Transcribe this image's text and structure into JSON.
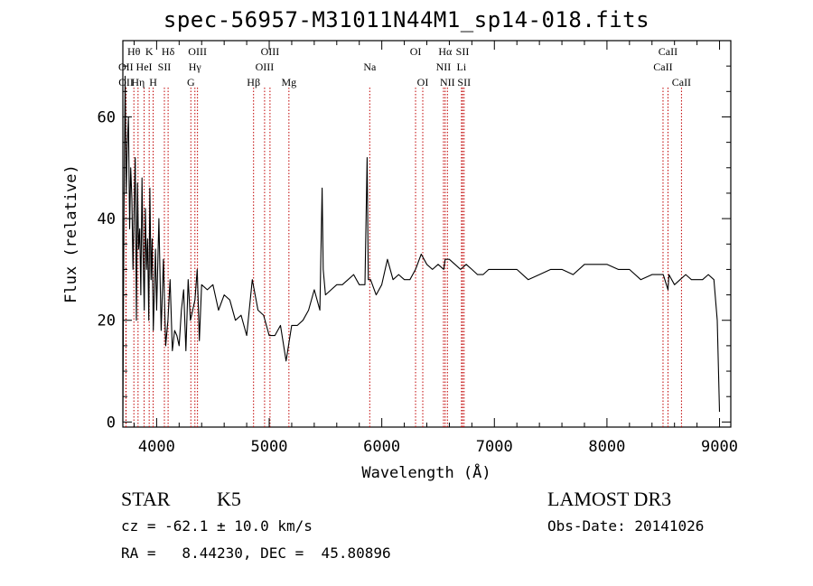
{
  "title": "spec-56957-M31011N44M1_sp14-018.fits",
  "footer": {
    "class_label": "STAR",
    "subclass": "K5",
    "survey": "LAMOST DR3",
    "cz": "cz = -62.1 ± 10.0 km/s",
    "obs_date": "Obs-Date: 20141026",
    "coords": "RA =   8.44230, DEC =  45.80896"
  },
  "colors": {
    "spectrum": "#000000",
    "line_marker": "#c00000",
    "axis": "#000000"
  },
  "chart_data": {
    "type": "line",
    "xlabel": "Wavelength (Å)",
    "ylabel": "Flux (relative)",
    "xlim": [
      3700,
      9100
    ],
    "ylim": [
      -1,
      75
    ],
    "xticks": [
      4000,
      5000,
      6000,
      7000,
      8000,
      9000
    ],
    "yticks": [
      0,
      20,
      40,
      60
    ],
    "grid": false,
    "series": [
      {
        "x": [
          3700,
          3710,
          3720,
          3730,
          3740,
          3750,
          3760,
          3770,
          3780,
          3790,
          3800,
          3810,
          3820,
          3830,
          3840,
          3850,
          3860,
          3870,
          3880,
          3890,
          3900,
          3910,
          3920,
          3930,
          3940,
          3950,
          3960,
          3970,
          3980,
          3990,
          4000,
          4020,
          4040,
          4060,
          4080,
          4100,
          4120,
          4140,
          4160,
          4180,
          4200,
          4220,
          4240,
          4260,
          4280,
          4300,
          4320,
          4340,
          4360,
          4380,
          4400,
          4450,
          4500,
          4550,
          4600,
          4650,
          4700,
          4750,
          4800,
          4850,
          4900,
          4950,
          5000,
          5050,
          5100,
          5150,
          5200,
          5250,
          5300,
          5350,
          5400,
          5450,
          5470,
          5480,
          5500,
          5550,
          5600,
          5650,
          5700,
          5750,
          5800,
          5850,
          5870,
          5880,
          5890,
          5900,
          5950,
          6000,
          6050,
          6100,
          6150,
          6200,
          6250,
          6300,
          6350,
          6400,
          6450,
          6500,
          6550,
          6563,
          6600,
          6650,
          6700,
          6750,
          6800,
          6850,
          6900,
          6950,
          7000,
          7100,
          7200,
          7300,
          7400,
          7500,
          7600,
          7700,
          7800,
          7900,
          8000,
          8100,
          8200,
          8300,
          8400,
          8450,
          8500,
          8542,
          8550,
          8600,
          8650,
          8700,
          8750,
          8800,
          8850,
          8900,
          8950,
          8980,
          9000
        ],
        "y": [
          0,
          40,
          68,
          45,
          55,
          60,
          38,
          50,
          44,
          30,
          42,
          52,
          20,
          47,
          34,
          38,
          25,
          48,
          33,
          22,
          42,
          30,
          36,
          20,
          46,
          28,
          36,
          18,
          26,
          34,
          22,
          40,
          18,
          32,
          15,
          20,
          28,
          14,
          18,
          17,
          15,
          22,
          26,
          14,
          28,
          20,
          22,
          24,
          30,
          16,
          27,
          26,
          27,
          22,
          25,
          24,
          20,
          21,
          17,
          28,
          22,
          21,
          17,
          17,
          19,
          12,
          19,
          19,
          20,
          22,
          26,
          22,
          46,
          30,
          25,
          26,
          27,
          27,
          28,
          29,
          27,
          27,
          52,
          28,
          28,
          28,
          25,
          27,
          32,
          28,
          29,
          28,
          28,
          30,
          33,
          31,
          30,
          31,
          30,
          32,
          32,
          31,
          30,
          31,
          30,
          29,
          29,
          30,
          30,
          30,
          30,
          28,
          29,
          30,
          30,
          29,
          31,
          31,
          31,
          30,
          30,
          28,
          29,
          29,
          29,
          26,
          29,
          27,
          28,
          29,
          28,
          28,
          28,
          29,
          28,
          20,
          2
        ]
      }
    ],
    "annotations": [
      {
        "label": "Hθ",
        "x": 3798,
        "row": 1
      },
      {
        "label": "OII",
        "x": 3727,
        "row": 2
      },
      {
        "label": "OII",
        "x": 3729,
        "row": 3
      },
      {
        "label": "K",
        "x": 3934,
        "row": 1
      },
      {
        "label": "Hδ",
        "x": 4102,
        "row": 1
      },
      {
        "label": "HeI",
        "x": 3889,
        "row": 2
      },
      {
        "label": "SII",
        "x": 4069,
        "row": 2
      },
      {
        "label": "Hη",
        "x": 3835,
        "row": 3
      },
      {
        "label": "H",
        "x": 3969,
        "row": 3
      },
      {
        "label": "OIII",
        "x": 4363,
        "row": 1
      },
      {
        "label": "Hγ",
        "x": 4340,
        "row": 2
      },
      {
        "label": "G",
        "x": 4304,
        "row": 3
      },
      {
        "label": "OIII",
        "x": 5007,
        "row": 1
      },
      {
        "label": "OIII",
        "x": 4959,
        "row": 2
      },
      {
        "label": "Hβ",
        "x": 4861,
        "row": 3
      },
      {
        "label": "Mg",
        "x": 5175,
        "row": 3
      },
      {
        "label": "Na",
        "x": 5893,
        "row": 2
      },
      {
        "label": "OI",
        "x": 6300,
        "row": 1
      },
      {
        "label": "OI",
        "x": 6364,
        "row": 3
      },
      {
        "label": "Hα",
        "x": 6563,
        "row": 1
      },
      {
        "label": "SII",
        "x": 6717,
        "row": 1
      },
      {
        "label": "NII",
        "x": 6548,
        "row": 2
      },
      {
        "label": "Li",
        "x": 6708,
        "row": 2
      },
      {
        "label": "NII",
        "x": 6583,
        "row": 3
      },
      {
        "label": "SII",
        "x": 6731,
        "row": 3
      },
      {
        "label": "CaII",
        "x": 8542,
        "row": 1
      },
      {
        "label": "CaII",
        "x": 8498,
        "row": 2
      },
      {
        "label": "CaII",
        "x": 8662,
        "row": 3
      }
    ]
  }
}
